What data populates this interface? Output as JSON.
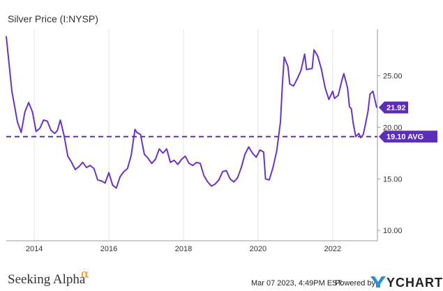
{
  "chart_data": {
    "type": "line",
    "title": "Silver Price (I:NYSP)",
    "xlabel": "",
    "ylabel": "",
    "x_tick_labels": [
      "2014",
      "2016",
      "2018",
      "2020",
      "2022"
    ],
    "y_tick_labels": [
      "10.00",
      "15.00",
      "20.00",
      "25.00"
    ],
    "xlim": [
      2013.25,
      2023.2
    ],
    "ylim": [
      9.0,
      29.5
    ],
    "grid": "vertical",
    "series": [
      {
        "values": [
          [
            2013.25,
            28.8
          ],
          [
            2013.4,
            23.5
          ],
          [
            2013.55,
            20.5
          ],
          [
            2013.65,
            19.5
          ],
          [
            2013.75,
            21.5
          ],
          [
            2013.85,
            22.4
          ],
          [
            2013.95,
            21.5
          ],
          [
            2014.05,
            19.6
          ],
          [
            2014.15,
            19.9
          ],
          [
            2014.25,
            20.7
          ],
          [
            2014.35,
            20.6
          ],
          [
            2014.45,
            19.7
          ],
          [
            2014.55,
            19.4
          ],
          [
            2014.62,
            19.7
          ],
          [
            2014.7,
            20.7
          ],
          [
            2014.8,
            19.2
          ],
          [
            2014.9,
            17.2
          ],
          [
            2015.0,
            16.6
          ],
          [
            2015.1,
            15.9
          ],
          [
            2015.2,
            16.2
          ],
          [
            2015.3,
            16.6
          ],
          [
            2015.4,
            16.1
          ],
          [
            2015.5,
            16.3
          ],
          [
            2015.6,
            16.0
          ],
          [
            2015.7,
            14.9
          ],
          [
            2015.8,
            14.8
          ],
          [
            2015.9,
            14.6
          ],
          [
            2016.0,
            15.6
          ],
          [
            2016.1,
            14.4
          ],
          [
            2016.2,
            14.1
          ],
          [
            2016.3,
            15.2
          ],
          [
            2016.4,
            15.7
          ],
          [
            2016.5,
            16.0
          ],
          [
            2016.6,
            17.3
          ],
          [
            2016.7,
            19.8
          ],
          [
            2016.75,
            19.5
          ],
          [
            2016.85,
            19.3
          ],
          [
            2016.95,
            17.4
          ],
          [
            2017.05,
            17.0
          ],
          [
            2017.15,
            16.5
          ],
          [
            2017.25,
            16.9
          ],
          [
            2017.35,
            17.9
          ],
          [
            2017.45,
            17.5
          ],
          [
            2017.55,
            17.9
          ],
          [
            2017.65,
            16.6
          ],
          [
            2017.75,
            16.8
          ],
          [
            2017.85,
            16.4
          ],
          [
            2017.95,
            16.9
          ],
          [
            2018.05,
            17.2
          ],
          [
            2018.15,
            16.5
          ],
          [
            2018.25,
            16.3
          ],
          [
            2018.35,
            16.6
          ],
          [
            2018.45,
            16.5
          ],
          [
            2018.55,
            15.3
          ],
          [
            2018.65,
            14.7
          ],
          [
            2018.75,
            14.3
          ],
          [
            2018.85,
            14.5
          ],
          [
            2018.95,
            14.9
          ],
          [
            2019.05,
            15.7
          ],
          [
            2019.15,
            15.8
          ],
          [
            2019.25,
            15.0
          ],
          [
            2019.35,
            14.7
          ],
          [
            2019.45,
            15.1
          ],
          [
            2019.55,
            16.1
          ],
          [
            2019.65,
            17.4
          ],
          [
            2019.75,
            18.1
          ],
          [
            2019.85,
            17.5
          ],
          [
            2019.95,
            17.1
          ],
          [
            2020.05,
            17.8
          ],
          [
            2020.15,
            17.6
          ],
          [
            2020.2,
            15.0
          ],
          [
            2020.3,
            14.9
          ],
          [
            2020.4,
            16.1
          ],
          [
            2020.5,
            17.7
          ],
          [
            2020.6,
            20.5
          ],
          [
            2020.65,
            24.0
          ],
          [
            2020.7,
            26.8
          ],
          [
            2020.8,
            25.9
          ],
          [
            2020.85,
            24.2
          ],
          [
            2020.95,
            24.0
          ],
          [
            2021.05,
            24.7
          ],
          [
            2021.15,
            25.5
          ],
          [
            2021.25,
            27.1
          ],
          [
            2021.3,
            25.6
          ],
          [
            2021.45,
            25.7
          ],
          [
            2021.5,
            27.5
          ],
          [
            2021.6,
            26.9
          ],
          [
            2021.7,
            25.6
          ],
          [
            2021.8,
            23.8
          ],
          [
            2021.9,
            22.7
          ],
          [
            2022.0,
            23.5
          ],
          [
            2022.05,
            22.8
          ],
          [
            2022.15,
            23.1
          ],
          [
            2022.25,
            24.6
          ],
          [
            2022.3,
            25.2
          ],
          [
            2022.4,
            23.8
          ],
          [
            2022.45,
            22.0
          ],
          [
            2022.5,
            21.8
          ],
          [
            2022.55,
            20.4
          ],
          [
            2022.62,
            19.1
          ],
          [
            2022.7,
            19.4
          ],
          [
            2022.75,
            19.0
          ],
          [
            2022.82,
            19.3
          ],
          [
            2022.88,
            20.3
          ],
          [
            2022.95,
            21.6
          ],
          [
            2023.0,
            23.2
          ],
          [
            2023.08,
            23.5
          ],
          [
            2023.18,
            21.92
          ]
        ]
      }
    ],
    "average": {
      "value": 19.1,
      "label": "19.10 AVG"
    },
    "last_value": {
      "value": 21.92,
      "label": "21.92"
    },
    "colors": {
      "line": "#6a33c7",
      "badge": "#5c2db8",
      "grid": "#e3e3e3",
      "axis": "#999999"
    }
  },
  "footer": {
    "brand": "Seeking Alpha",
    "brand_symbol": "α",
    "timestamp": "Mar 07 2023, 4:49PM EST.",
    "powered_by": "Powered by",
    "provider": "YCHARTS"
  }
}
